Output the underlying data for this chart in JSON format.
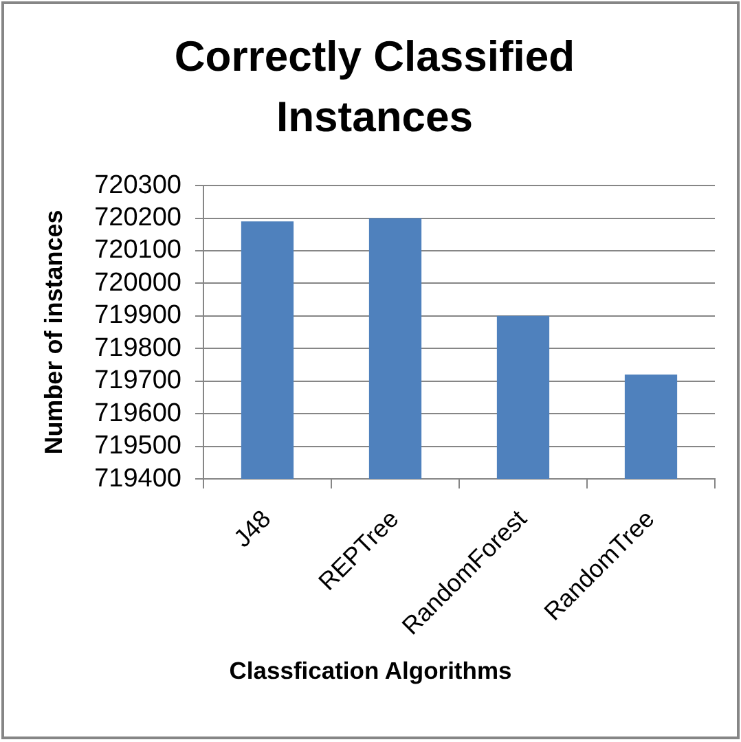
{
  "chart_data": {
    "type": "bar",
    "title": "Correctly Classified Instances",
    "xlabel": "Classfication Algorithms",
    "ylabel": "Number of instances",
    "categories": [
      "J48",
      "REPTree",
      "RandomForest",
      "RandomTree"
    ],
    "values": [
      720190,
      720200,
      719900,
      719720
    ],
    "color": "#4f81bd",
    "ylim": [
      719400,
      720300
    ],
    "yticks": [
      719400,
      719500,
      719600,
      719700,
      719800,
      719900,
      720000,
      720100,
      720200,
      720300
    ],
    "grid": "y"
  }
}
